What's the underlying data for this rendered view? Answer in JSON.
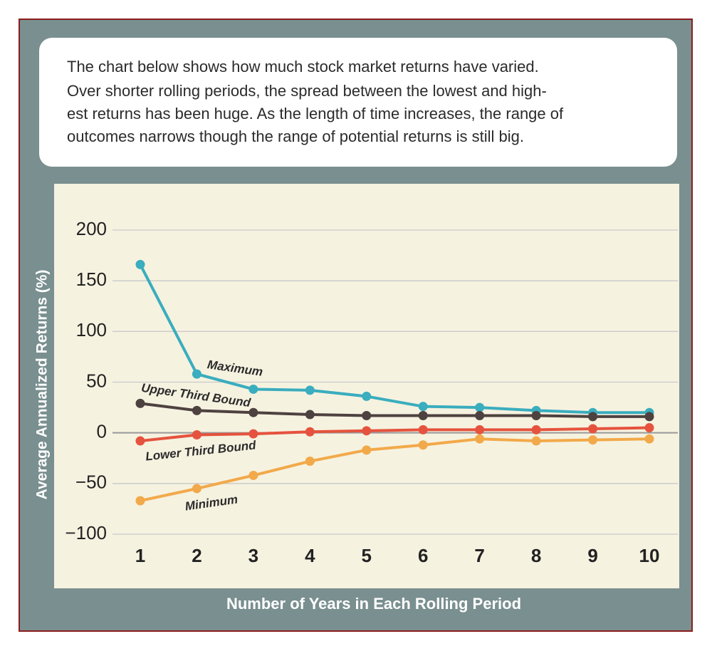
{
  "intro": [
    "The chart below shows how much stock market returns have varied.",
    "Over shorter rolling periods, the spread between the lowest and high-",
    "est returns has been huge. As the length of time increases, the range of",
    "outcomes narrows though the range of potential returns is still big."
  ],
  "chart_data": {
    "type": "line",
    "x_label": "Number of Years in Each Rolling Period",
    "y_label": "Average Annualized Returns (%)",
    "categories": [
      "1",
      "2",
      "3",
      "4",
      "5",
      "6",
      "7",
      "8",
      "9",
      "10"
    ],
    "ylim": [
      -100,
      200
    ],
    "yticks": [
      {
        "value": -100,
        "label": "−100"
      },
      {
        "value": -50,
        "label": "−50"
      },
      0,
      50,
      100,
      150,
      200
    ],
    "grid": true,
    "series": [
      {
        "name": "Maximum",
        "color": "#3aadbe",
        "values": [
          166,
          58,
          43,
          42,
          36,
          26,
          25,
          22,
          20,
          20
        ]
      },
      {
        "name": "Upper Third Bound",
        "color": "#4e4240",
        "values": [
          29,
          22,
          20,
          18,
          17,
          17,
          17,
          17,
          16,
          16
        ]
      },
      {
        "name": "Lower Third Bound",
        "color": "#e5533e",
        "values": [
          -8,
          -2,
          -1,
          1,
          2,
          3,
          3,
          3,
          4,
          5
        ]
      },
      {
        "name": "Minimum",
        "color": "#f2a94a",
        "values": [
          -67,
          -55,
          -42,
          -28,
          -17,
          -12,
          -6,
          -8,
          -7,
          -6
        ]
      }
    ]
  }
}
